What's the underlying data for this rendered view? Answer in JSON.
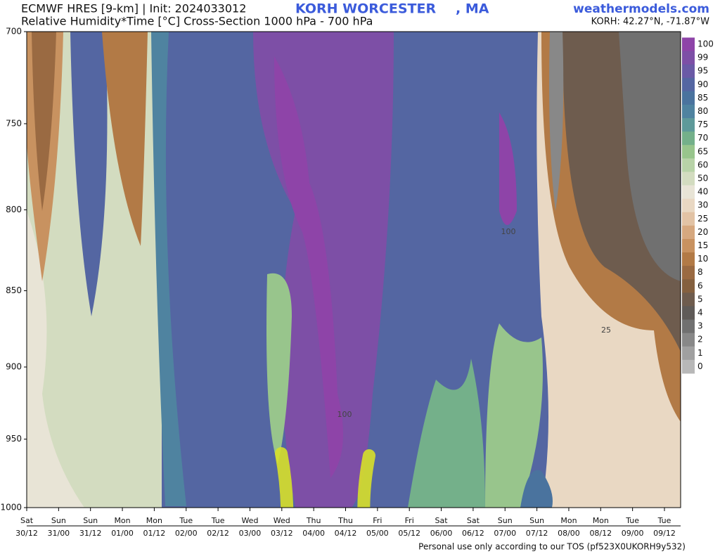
{
  "chart_data": {
    "type": "cross-section",
    "title": "ECMWF HRES [9-km] | Init: 2024033012",
    "station": "KORH WORCESTER",
    "state": ", MA",
    "brand": "weathermodels.com",
    "subtitle": "Relative Humidity*Time [°C] Cross-Section 1000 hPa - 700 hPa",
    "location": "KORH: 42.27°N, -71.87°W",
    "footer": "Personal use only according to our TOS (pf523X0UKORH9y532)",
    "log_y": true,
    "y_inverted": true,
    "ylim": [
      700,
      1000
    ],
    "yticks": [
      700,
      750,
      800,
      850,
      900,
      950,
      1000
    ],
    "categories": [
      "Sat",
      "Sun",
      "Sun",
      "Mon",
      "Mon",
      "Tue",
      "Tue",
      "Wed",
      "Wed",
      "Thu",
      "Thu",
      "Fri",
      "Fri",
      "Sat",
      "Sat",
      "Sun",
      "Sun",
      "Mon",
      "Mon",
      "Tue",
      "Tue"
    ],
    "category_times": [
      "30/12",
      "31/00",
      "31/12",
      "01/00",
      "01/12",
      "02/00",
      "02/12",
      "03/00",
      "03/12",
      "04/00",
      "04/12",
      "05/00",
      "05/12",
      "06/00",
      "06/12",
      "07/00",
      "07/12",
      "08/00",
      "08/12",
      "09/00",
      "09/12"
    ],
    "contour_labels": [
      "100",
      "100",
      "25"
    ],
    "colorbar": {
      "levels": [
        100,
        99,
        95,
        90,
        85,
        80,
        75,
        70,
        65,
        60,
        50,
        40,
        30,
        25,
        20,
        15,
        10,
        8,
        6,
        5,
        4,
        3,
        2,
        1,
        0
      ],
      "colors": [
        "#8e44a8",
        "#7d4fa6",
        "#6a5aa6",
        "#5466a2",
        "#4a739e",
        "#4f83a0",
        "#5e9a9a",
        "#74b08a",
        "#98c58c",
        "#b8d3a8",
        "#d3dcc0",
        "#e8e4d6",
        "#e9d8c3",
        "#e2c3a5",
        "#d6a87f",
        "#c89260",
        "#b27a46",
        "#9a6a42",
        "#84603f",
        "#6e5c4e",
        "#5f5b58",
        "#707070",
        "#888888",
        "#a0a0a0",
        "#b8b8b8"
      ]
    }
  }
}
